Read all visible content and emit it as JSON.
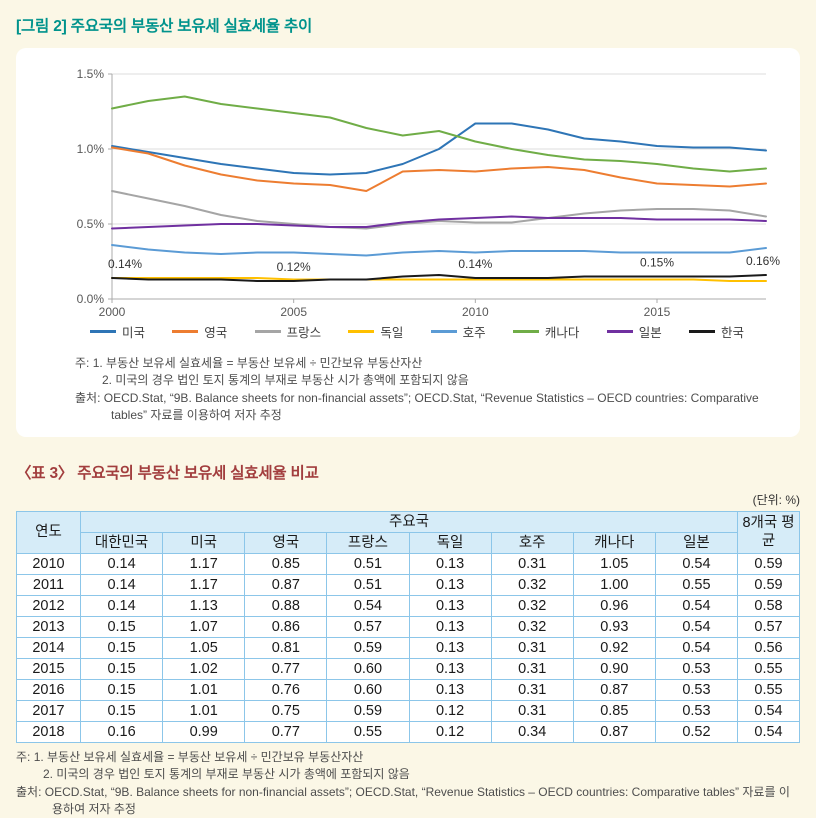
{
  "colors": {
    "page_bg": "#FBF7E6",
    "panel_bg": "#FFFFFF",
    "figure_title": "#00938C",
    "table_title": "#A23E3E",
    "table_header_bg": "#D6ECF8",
    "table_border": "#8CC6E9",
    "gridline": "#DCDCDC",
    "axis": "#ABABAB"
  },
  "figure": {
    "title": "[그림 2] 주요국의 부동산 보유세 실효세율 추이",
    "notes": [
      "주: 1. 부동산 보유세 실효세율 = 부동산 보유세 ÷ 민간보유 부동산자산",
      "2. 미국의 경우 법인 토지 통계의 부재로 부동산 시가 총액에 포함되지 않음"
    ],
    "source": "출처: OECD.Stat, “9B. Balance sheets for non-financial assets”; OECD.Stat, “Revenue Statistics – OECD countries: Comparative tables” 자료를 이용하여 저자 추정"
  },
  "chart_data": {
    "type": "line",
    "x": [
      2000,
      2001,
      2002,
      2003,
      2004,
      2005,
      2006,
      2007,
      2008,
      2009,
      2010,
      2011,
      2012,
      2013,
      2014,
      2015,
      2016,
      2017,
      2018
    ],
    "xlim": [
      2000,
      2018
    ],
    "ylim": [
      0,
      1.5
    ],
    "yticks": [
      [
        0,
        "0.0%"
      ],
      [
        0.5,
        "0.5%"
      ],
      [
        1,
        "1.0%"
      ],
      [
        1.5,
        "1.5%"
      ]
    ],
    "xticks": [
      [
        2000,
        "2000"
      ],
      [
        2005,
        "2005"
      ],
      [
        2010,
        "2010"
      ],
      [
        2015,
        "2015"
      ]
    ],
    "grid": "horizontal",
    "legend_position": "bottom",
    "series": [
      {
        "id": "us",
        "name": "미국",
        "color": "#2E75B6",
        "values": [
          1.02,
          0.98,
          0.94,
          0.9,
          0.87,
          0.84,
          0.83,
          0.84,
          0.9,
          1.0,
          1.17,
          1.17,
          1.13,
          1.07,
          1.05,
          1.02,
          1.01,
          1.01,
          0.99
        ]
      },
      {
        "id": "uk",
        "name": "영국",
        "color": "#ED7D31",
        "values": [
          1.01,
          0.97,
          0.89,
          0.83,
          0.79,
          0.77,
          0.76,
          0.72,
          0.85,
          0.86,
          0.85,
          0.87,
          0.88,
          0.86,
          0.81,
          0.77,
          0.76,
          0.75,
          0.77
        ]
      },
      {
        "id": "france",
        "name": "프랑스",
        "color": "#A5A5A5",
        "values": [
          0.72,
          0.67,
          0.62,
          0.56,
          0.52,
          0.5,
          0.48,
          0.47,
          0.5,
          0.52,
          0.51,
          0.51,
          0.54,
          0.57,
          0.59,
          0.6,
          0.6,
          0.59,
          0.55
        ]
      },
      {
        "id": "germany",
        "name": "독일",
        "color": "#FFC000",
        "values": [
          0.14,
          0.14,
          0.14,
          0.14,
          0.14,
          0.13,
          0.13,
          0.13,
          0.13,
          0.13,
          0.13,
          0.13,
          0.13,
          0.13,
          0.13,
          0.13,
          0.13,
          0.12,
          0.12
        ]
      },
      {
        "id": "australia",
        "name": "호주",
        "color": "#5B9BD5",
        "values": [
          0.36,
          0.33,
          0.31,
          0.3,
          0.31,
          0.31,
          0.3,
          0.29,
          0.31,
          0.32,
          0.31,
          0.32,
          0.32,
          0.32,
          0.31,
          0.31,
          0.31,
          0.31,
          0.34
        ]
      },
      {
        "id": "canada",
        "name": "캐나다",
        "color": "#70AD47",
        "values": [
          1.27,
          1.32,
          1.35,
          1.3,
          1.27,
          1.24,
          1.21,
          1.14,
          1.09,
          1.12,
          1.05,
          1.0,
          0.96,
          0.93,
          0.92,
          0.9,
          0.87,
          0.85,
          0.87
        ]
      },
      {
        "id": "japan",
        "name": "일본",
        "color": "#7030A0",
        "values": [
          0.47,
          0.48,
          0.49,
          0.5,
          0.5,
          0.49,
          0.48,
          0.48,
          0.51,
          0.53,
          0.54,
          0.55,
          0.54,
          0.54,
          0.54,
          0.53,
          0.53,
          0.53,
          0.52
        ]
      },
      {
        "id": "korea",
        "name": "한국",
        "color": "#1A1A1A",
        "values": [
          0.14,
          0.13,
          0.13,
          0.13,
          0.12,
          0.12,
          0.13,
          0.13,
          0.15,
          0.16,
          0.14,
          0.14,
          0.14,
          0.15,
          0.15,
          0.15,
          0.15,
          0.15,
          0.16
        ]
      }
    ],
    "annotations": [
      {
        "x": 2000,
        "y": 0.14,
        "label": "0.14%",
        "anchor": "start",
        "dx": -4
      },
      {
        "x": 2005,
        "y": 0.12,
        "label": "0.12%",
        "anchor": "middle",
        "dx": 0
      },
      {
        "x": 2010,
        "y": 0.14,
        "label": "0.14%",
        "anchor": "middle",
        "dx": 0
      },
      {
        "x": 2015,
        "y": 0.15,
        "label": "0.15%",
        "anchor": "middle",
        "dx": 0
      },
      {
        "x": 2018,
        "y": 0.16,
        "label": "0.16%",
        "anchor": "end",
        "dx": 14
      }
    ]
  },
  "table": {
    "title": "〈표 3〉 주요국의 부동산 보유세 실효세율 비교",
    "unit": "(단위: %)",
    "header": {
      "year": "연도",
      "group": "주요국",
      "countries": [
        "대한민국",
        "미국",
        "영국",
        "프랑스",
        "독일",
        "호주",
        "캐나다",
        "일본"
      ],
      "avg": "8개국 평균"
    },
    "rows": [
      {
        "year": "2010",
        "values": [
          "0.14",
          "1.17",
          "0.85",
          "0.51",
          "0.13",
          "0.31",
          "1.05",
          "0.54"
        ],
        "avg": "0.59"
      },
      {
        "year": "2011",
        "values": [
          "0.14",
          "1.17",
          "0.87",
          "0.51",
          "0.13",
          "0.32",
          "1.00",
          "0.55"
        ],
        "avg": "0.59"
      },
      {
        "year": "2012",
        "values": [
          "0.14",
          "1.13",
          "0.88",
          "0.54",
          "0.13",
          "0.32",
          "0.96",
          "0.54"
        ],
        "avg": "0.58"
      },
      {
        "year": "2013",
        "values": [
          "0.15",
          "1.07",
          "0.86",
          "0.57",
          "0.13",
          "0.32",
          "0.93",
          "0.54"
        ],
        "avg": "0.57"
      },
      {
        "year": "2014",
        "values": [
          "0.15",
          "1.05",
          "0.81",
          "0.59",
          "0.13",
          "0.31",
          "0.92",
          "0.54"
        ],
        "avg": "0.56"
      },
      {
        "year": "2015",
        "values": [
          "0.15",
          "1.02",
          "0.77",
          "0.60",
          "0.13",
          "0.31",
          "0.90",
          "0.53"
        ],
        "avg": "0.55"
      },
      {
        "year": "2016",
        "values": [
          "0.15",
          "1.01",
          "0.76",
          "0.60",
          "0.13",
          "0.31",
          "0.87",
          "0.53"
        ],
        "avg": "0.55"
      },
      {
        "year": "2017",
        "values": [
          "0.15",
          "1.01",
          "0.75",
          "0.59",
          "0.12",
          "0.31",
          "0.85",
          "0.53"
        ],
        "avg": "0.54"
      },
      {
        "year": "2018",
        "values": [
          "0.16",
          "0.99",
          "0.77",
          "0.55",
          "0.12",
          "0.34",
          "0.87",
          "0.52"
        ],
        "avg": "0.54"
      }
    ],
    "notes": [
      "주: 1. 부동산 보유세 실효세율 = 부동산 보유세 ÷ 민간보유 부동산자산",
      "2. 미국의 경우 법인 토지 통계의 부재로 부동산 시가 총액에 포함되지 않음"
    ],
    "source": "출처: OECD.Stat, “9B. Balance sheets for non-financial assets”; OECD.Stat, “Revenue Statistics – OECD countries: Comparative tables” 자료를 이용하여 저자 추정"
  }
}
